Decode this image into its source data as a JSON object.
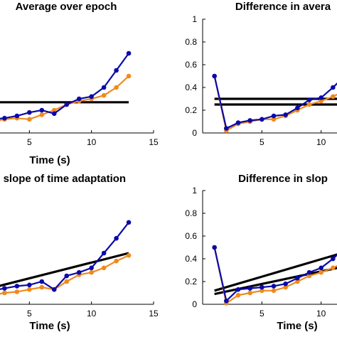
{
  "chart_data": [
    {
      "type": "line",
      "title": "Average over epoch",
      "xlabel": "Time (s)",
      "ylabel": "",
      "xlim": [
        0,
        15
      ],
      "ylim": [
        0,
        1
      ],
      "xticks": [
        5,
        10,
        15
      ],
      "yticks": [],
      "series": [
        {
          "color": "#0a0aaa",
          "x": [
            1,
            2,
            3,
            4,
            5,
            6,
            7,
            8,
            9,
            10,
            11,
            12,
            13
          ],
          "y": [
            0.08,
            0.12,
            0.13,
            0.15,
            0.18,
            0.2,
            0.17,
            0.25,
            0.3,
            0.32,
            0.4,
            0.55,
            0.7
          ]
        },
        {
          "color": "#f08a1c",
          "x": [
            1,
            2,
            3,
            4,
            5,
            6,
            7,
            8,
            9,
            10,
            11,
            12,
            13
          ],
          "y": [
            0.07,
            0.1,
            0.12,
            0.13,
            0.12,
            0.16,
            0.2,
            0.25,
            0.28,
            0.3,
            0.33,
            0.4,
            0.5
          ]
        }
      ],
      "reference_lines": [
        {
          "x": [
            0,
            13
          ],
          "y": [
            0.27,
            0.27
          ]
        }
      ]
    },
    {
      "type": "line",
      "title": "Difference in avera",
      "xlabel": "",
      "ylabel": "",
      "xlim": [
        0,
        15
      ],
      "ylim": [
        0,
        1
      ],
      "xticks": [
        5,
        10
      ],
      "yticks": [
        0,
        0.2,
        0.4,
        0.6,
        0.8,
        1
      ],
      "yticklabels": [
        "0",
        "0.2",
        "0.4",
        "0.6",
        "0.8",
        "1"
      ],
      "series": [
        {
          "color": "#0a0aaa",
          "x": [
            1,
            2,
            3,
            4,
            5,
            6,
            7,
            8,
            9,
            10,
            11,
            12,
            13
          ],
          "y": [
            0.5,
            0.04,
            0.09,
            0.11,
            0.12,
            0.15,
            0.16,
            0.22,
            0.29,
            0.31,
            0.4,
            0.5,
            0.6
          ]
        },
        {
          "color": "#f08a1c",
          "x": [
            1,
            2,
            3,
            4,
            5,
            6,
            7,
            8,
            9,
            10,
            11,
            12,
            13
          ],
          "y": [
            0.5,
            0.02,
            0.08,
            0.1,
            0.12,
            0.12,
            0.15,
            0.2,
            0.25,
            0.28,
            0.32,
            0.37,
            0.42
          ]
        }
      ],
      "reference_lines": [
        {
          "x": [
            1,
            15
          ],
          "y": [
            0.3,
            0.3
          ]
        },
        {
          "x": [
            1,
            15
          ],
          "y": [
            0.25,
            0.25
          ]
        }
      ]
    },
    {
      "type": "line",
      "title": "ge slope of time adaptation",
      "xlabel": "Time (s)",
      "ylabel": "",
      "xlim": [
        0,
        15
      ],
      "ylim": [
        0,
        1
      ],
      "xticks": [
        5,
        10,
        15
      ],
      "yticks": [],
      "series": [
        {
          "color": "#0a0aaa",
          "x": [
            1,
            2,
            3,
            4,
            5,
            6,
            7,
            8,
            9,
            10,
            11,
            12,
            13
          ],
          "y": [
            0.1,
            0.12,
            0.14,
            0.16,
            0.17,
            0.2,
            0.13,
            0.25,
            0.28,
            0.32,
            0.45,
            0.58,
            0.72
          ]
        },
        {
          "color": "#f08a1c",
          "x": [
            1,
            2,
            3,
            4,
            5,
            6,
            7,
            8,
            9,
            10,
            11,
            12,
            13
          ],
          "y": [
            0.06,
            0.08,
            0.1,
            0.11,
            0.13,
            0.15,
            0.13,
            0.2,
            0.26,
            0.28,
            0.32,
            0.38,
            0.43
          ]
        }
      ],
      "reference_lines": [
        {
          "x": [
            0,
            13
          ],
          "y": [
            0.09,
            0.45
          ]
        }
      ]
    },
    {
      "type": "line",
      "title": "Difference in slop",
      "xlabel": "Time (s)",
      "ylabel": "",
      "xlim": [
        0,
        15
      ],
      "ylim": [
        0,
        1
      ],
      "xticks": [
        5,
        10
      ],
      "yticks": [
        0,
        0.2,
        0.4,
        0.6,
        0.8,
        1
      ],
      "yticklabels": [
        "0",
        "0.2",
        "0.4",
        "0.6",
        "0.8",
        "1"
      ],
      "series": [
        {
          "color": "#0a0aaa",
          "x": [
            1,
            2,
            3,
            4,
            5,
            6,
            7,
            8,
            9,
            10,
            11,
            12,
            13
          ],
          "y": [
            0.5,
            0.03,
            0.13,
            0.14,
            0.15,
            0.16,
            0.18,
            0.23,
            0.28,
            0.32,
            0.4,
            0.5,
            0.6
          ]
        },
        {
          "color": "#f08a1c",
          "x": [
            1,
            2,
            3,
            4,
            5,
            6,
            7,
            8,
            9,
            10,
            11,
            12,
            13
          ],
          "y": [
            0.5,
            0.01,
            0.08,
            0.1,
            0.12,
            0.12,
            0.15,
            0.2,
            0.25,
            0.28,
            0.32,
            0.37,
            0.42
          ]
        }
      ],
      "reference_lines": [
        {
          "x": [
            1,
            15
          ],
          "y": [
            0.12,
            0.55
          ]
        },
        {
          "x": [
            1,
            15
          ],
          "y": [
            0.09,
            0.4
          ]
        }
      ]
    }
  ]
}
